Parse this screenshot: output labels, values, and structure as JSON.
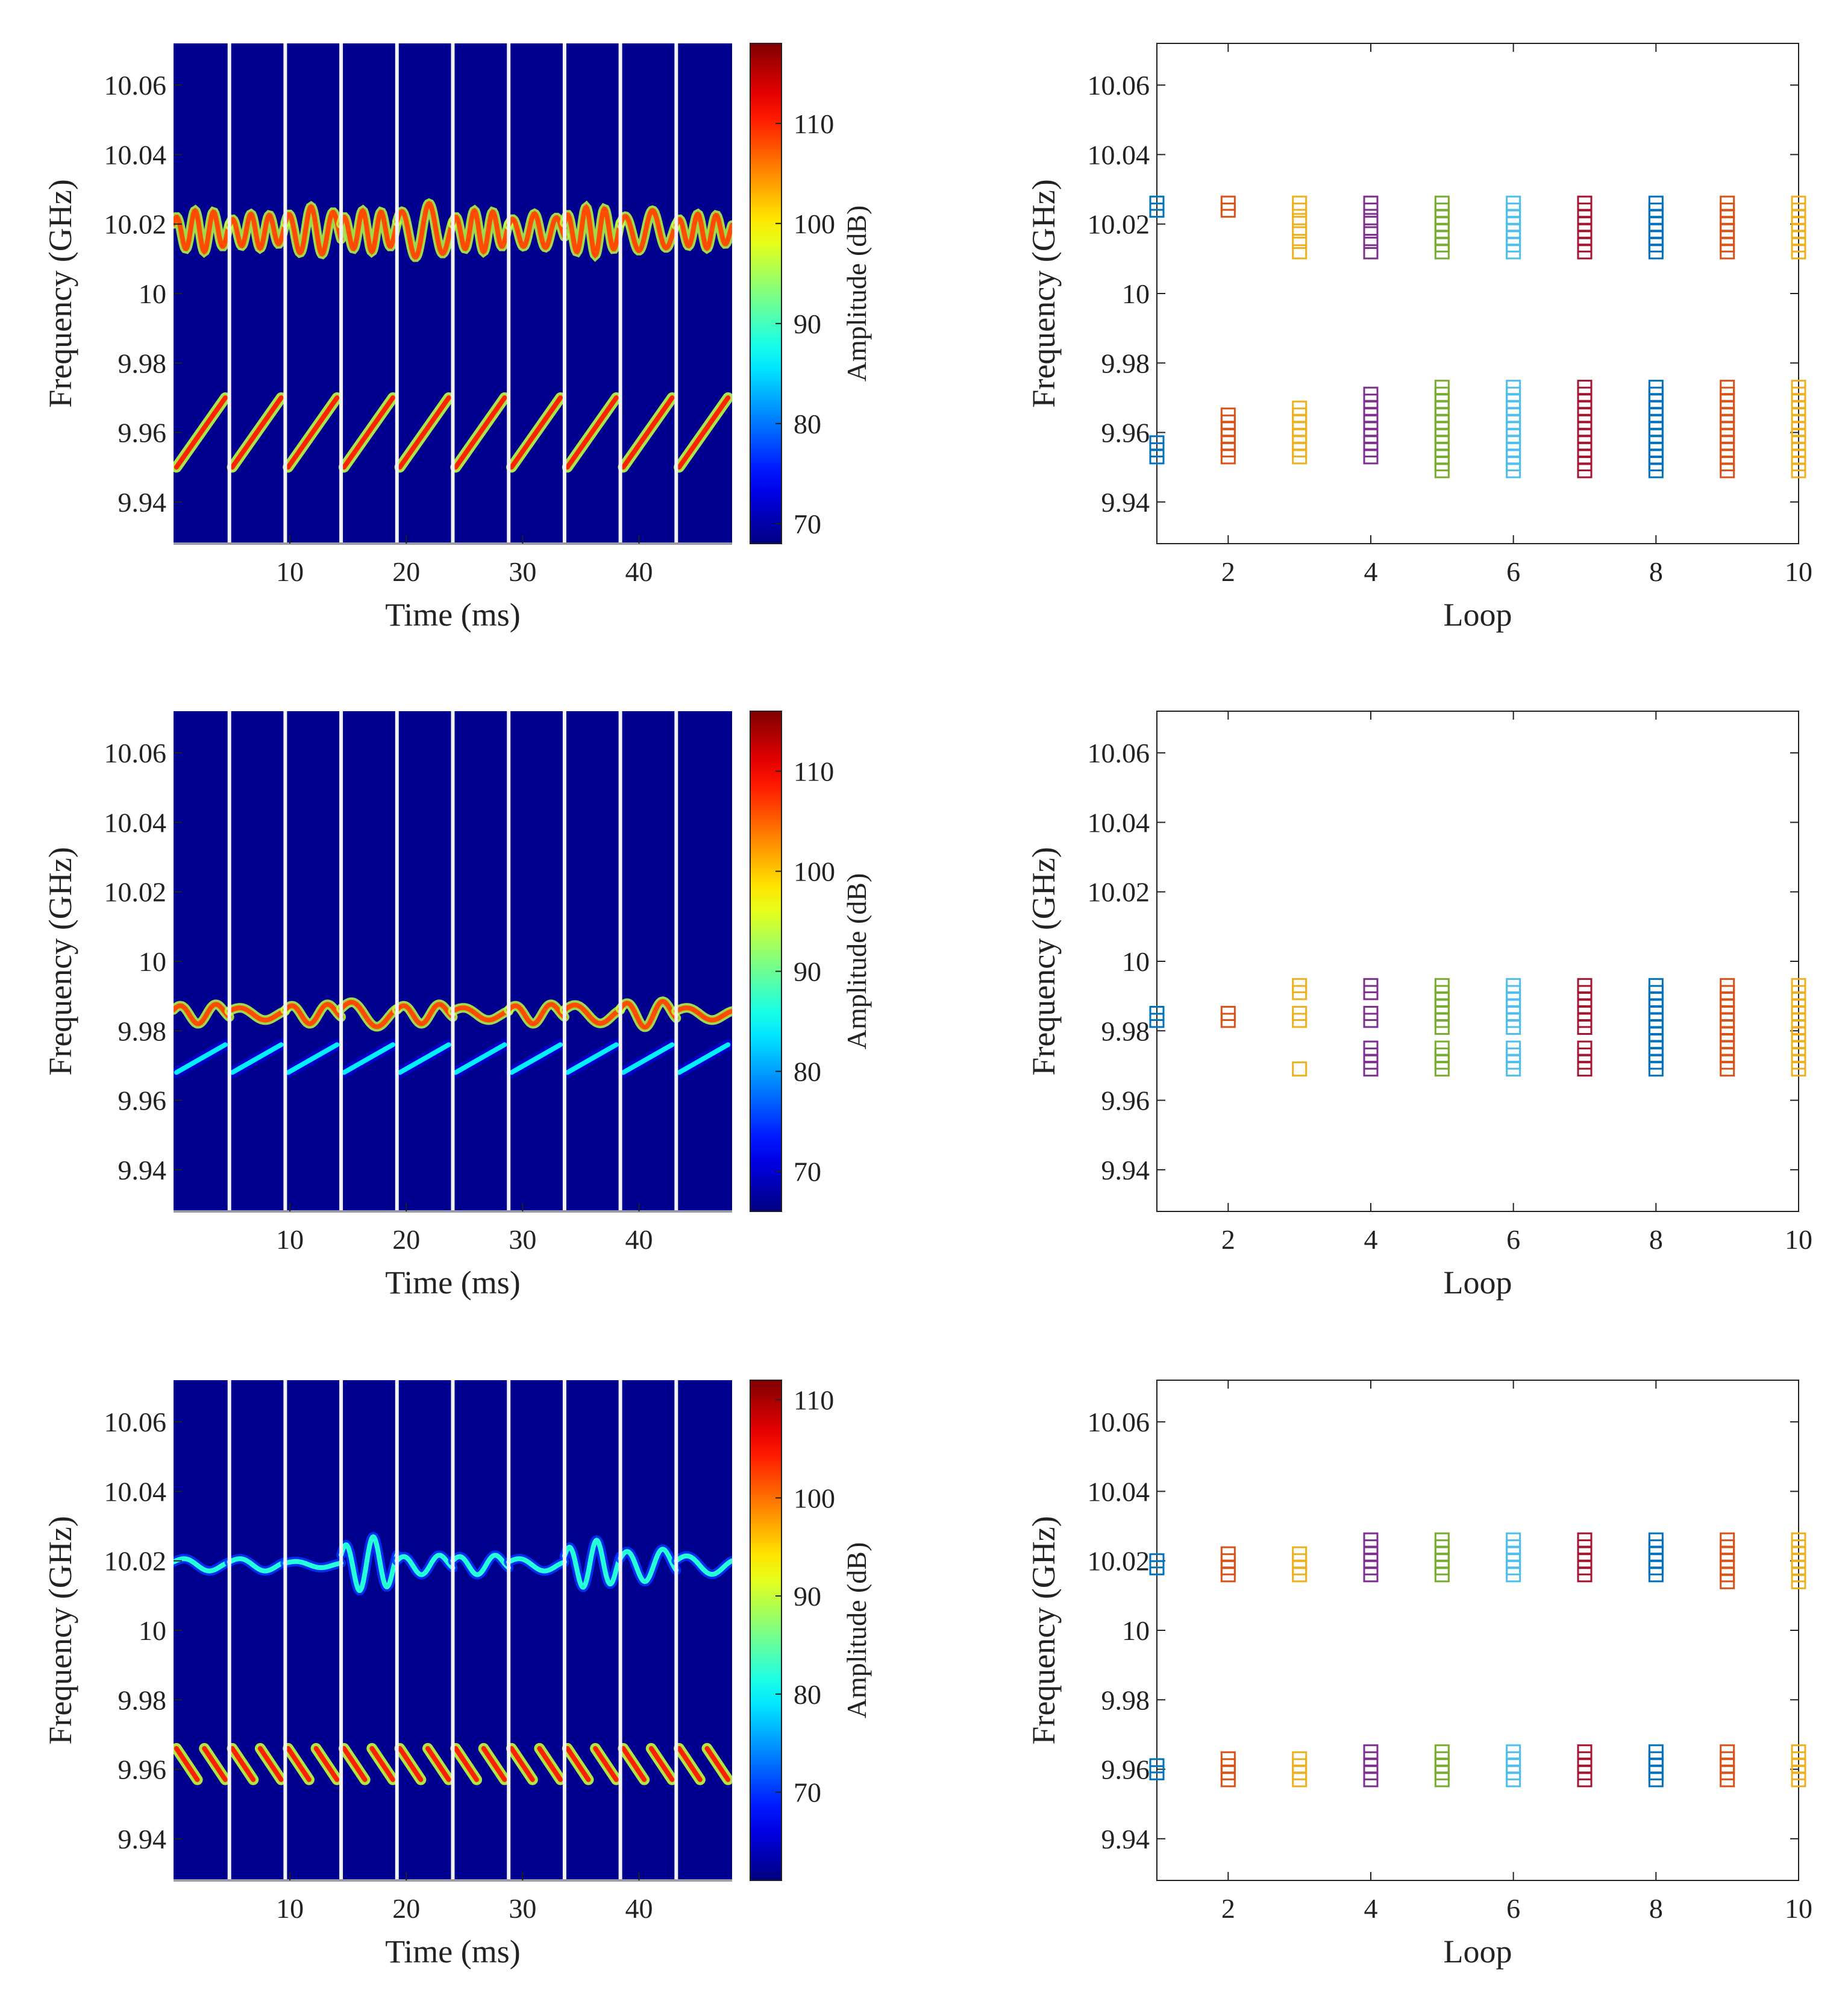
{
  "figure": {
    "colormap": "jet",
    "colors": {
      "background_plot": "#00008f",
      "separator": "#f2f2f2",
      "axis": "#222222"
    },
    "loop_colors": [
      "#0072bd",
      "#d95319",
      "#edb120",
      "#7e2f8e",
      "#77ac30",
      "#4dbeee",
      "#a2142f",
      "#0072bd",
      "#d95319",
      "#edb120"
    ]
  },
  "chart_data": [
    {
      "type": "heatmap",
      "id": "spectrogram-1",
      "xlabel": "Time (ms)",
      "ylabel": "Frequency (GHz)",
      "colorbar_label": "Amplitude (dB)",
      "xlim": [
        0,
        48
      ],
      "ylim": [
        9.928,
        10.072
      ],
      "xticks": [
        10,
        20,
        30,
        40
      ],
      "yticks": [
        9.94,
        9.96,
        9.98,
        10,
        10.02,
        10.04,
        10.06
      ],
      "ytick_labels": [
        "9.94",
        "9.96",
        "9.98",
        "10",
        "10.02",
        "10.04",
        "10.06"
      ],
      "cbar_range": [
        68,
        118
      ],
      "cbar_ticks": [
        70,
        80,
        90,
        100,
        110
      ],
      "separators_ms": [
        4.8,
        9.6,
        14.4,
        19.2,
        24,
        28.8,
        33.6,
        38.4,
        43.2
      ],
      "upper_band": {
        "center_ghz": 10.018,
        "swing_ghz": [
          0.006,
          0.005,
          0.007,
          0.006,
          0.008,
          0.006,
          0.005,
          0.007,
          0.006,
          0.005
        ],
        "cycles_per_loop": [
          3,
          3,
          2.5,
          3,
          2,
          3,
          2.5,
          3,
          2,
          3
        ],
        "level_db": 108
      },
      "lower_band": {
        "direction": "up",
        "start_ghz": 9.95,
        "end_ghz": 9.97,
        "level_db": 110
      }
    },
    {
      "type": "scatter",
      "id": "loops-1",
      "xlabel": "Loop",
      "ylabel": "Frequency (GHz)",
      "xlim": [
        1,
        10
      ],
      "ylim": [
        9.928,
        10.072
      ],
      "xticks": [
        2,
        4,
        6,
        8,
        10
      ],
      "yticks": [
        9.94,
        9.96,
        9.98,
        10,
        10.02,
        10.04,
        10.06
      ],
      "ytick_labels": [
        "9.94",
        "9.96",
        "9.98",
        "10",
        "10.02",
        "10.04",
        "10.06"
      ],
      "marker": "open-square",
      "points": [
        {
          "loop": 1,
          "freqs": [
            10.024,
            10.026,
            9.953,
            9.955,
            9.957
          ]
        },
        {
          "loop": 2,
          "freqs": [
            10.024,
            10.026,
            9.953,
            9.955,
            9.957,
            9.959,
            9.961,
            9.963,
            9.965
          ]
        },
        {
          "loop": 3,
          "freqs": [
            10.012,
            10.015,
            10.018,
            10.021,
            10.024,
            10.026,
            9.953,
            9.955,
            9.957,
            9.959,
            9.961,
            9.963,
            9.965,
            9.967
          ]
        },
        {
          "loop": 4,
          "freqs": [
            10.012,
            10.015,
            10.018,
            10.021,
            10.024,
            10.026,
            9.953,
            9.955,
            9.957,
            9.959,
            9.961,
            9.963,
            9.965,
            9.967,
            9.969,
            9.971
          ]
        },
        {
          "loop": 5,
          "freqs": [
            10.012,
            10.014,
            10.016,
            10.018,
            10.02,
            10.022,
            10.024,
            10.026,
            9.949,
            9.951,
            9.953,
            9.955,
            9.957,
            9.959,
            9.961,
            9.963,
            9.965,
            9.967,
            9.969,
            9.971,
            9.973
          ]
        },
        {
          "loop": 6,
          "freqs": [
            10.012,
            10.014,
            10.016,
            10.018,
            10.02,
            10.022,
            10.024,
            10.026,
            9.949,
            9.951,
            9.953,
            9.955,
            9.957,
            9.959,
            9.961,
            9.963,
            9.965,
            9.967,
            9.969,
            9.971,
            9.973
          ]
        },
        {
          "loop": 7,
          "freqs": [
            10.012,
            10.014,
            10.016,
            10.018,
            10.02,
            10.022,
            10.024,
            10.026,
            9.949,
            9.951,
            9.953,
            9.955,
            9.957,
            9.959,
            9.961,
            9.963,
            9.965,
            9.967,
            9.969,
            9.971,
            9.973
          ]
        },
        {
          "loop": 8,
          "freqs": [
            10.012,
            10.014,
            10.016,
            10.018,
            10.02,
            10.022,
            10.024,
            10.026,
            9.949,
            9.951,
            9.953,
            9.955,
            9.957,
            9.959,
            9.961,
            9.963,
            9.965,
            9.967,
            9.969,
            9.971,
            9.973
          ]
        },
        {
          "loop": 9,
          "freqs": [
            10.012,
            10.014,
            10.016,
            10.018,
            10.02,
            10.022,
            10.024,
            10.026,
            9.949,
            9.951,
            9.953,
            9.955,
            9.957,
            9.959,
            9.961,
            9.963,
            9.965,
            9.967,
            9.969,
            9.971,
            9.973
          ]
        },
        {
          "loop": 10,
          "freqs": [
            10.012,
            10.014,
            10.016,
            10.018,
            10.02,
            10.022,
            10.024,
            10.026,
            9.949,
            9.951,
            9.953,
            9.955,
            9.957,
            9.959,
            9.961,
            9.963,
            9.965,
            9.967,
            9.969,
            9.971,
            9.973
          ]
        }
      ]
    },
    {
      "type": "heatmap",
      "id": "spectrogram-2",
      "xlabel": "Time (ms)",
      "ylabel": "Frequency (GHz)",
      "colorbar_label": "Amplitude (dB)",
      "xlim": [
        0,
        48
      ],
      "ylim": [
        9.928,
        10.072
      ],
      "xticks": [
        10,
        20,
        30,
        40
      ],
      "yticks": [
        9.94,
        9.96,
        9.98,
        10,
        10.02,
        10.04,
        10.06
      ],
      "ytick_labels": [
        "9.94",
        "9.96",
        "9.98",
        "10",
        "10.02",
        "10.04",
        "10.06"
      ],
      "cbar_range": [
        66,
        116
      ],
      "cbar_ticks": [
        70,
        80,
        90,
        100,
        110
      ],
      "separators_ms": [
        4.8,
        9.6,
        14.4,
        19.2,
        24,
        28.8,
        33.6,
        38.4,
        43.2
      ],
      "upper_band": {
        "center_ghz": 9.985,
        "swing_ghz": [
          0.003,
          0.002,
          0.003,
          0.004,
          0.003,
          0.002,
          0.003,
          0.003,
          0.004,
          0.002
        ],
        "cycles_per_loop": [
          1.5,
          1,
          1.5,
          1,
          1.5,
          1,
          1.5,
          1,
          1.5,
          1
        ],
        "level_db": 106
      },
      "lower_band": {
        "direction": "up",
        "start_ghz": 9.968,
        "end_ghz": 9.976,
        "level_db": 84
      }
    },
    {
      "type": "scatter",
      "id": "loops-2",
      "xlabel": "Loop",
      "ylabel": "Frequency (GHz)",
      "xlim": [
        1,
        10
      ],
      "ylim": [
        9.928,
        10.072
      ],
      "xticks": [
        2,
        4,
        6,
        8,
        10
      ],
      "yticks": [
        9.94,
        9.96,
        9.98,
        10,
        10.02,
        10.04,
        10.06
      ],
      "ytick_labels": [
        "9.94",
        "9.96",
        "9.98",
        "10",
        "10.02",
        "10.04",
        "10.06"
      ],
      "marker": "open-square",
      "points": [
        {
          "loop": 1,
          "freqs": [
            9.983,
            9.985
          ]
        },
        {
          "loop": 2,
          "freqs": [
            9.983,
            9.985
          ]
        },
        {
          "loop": 3,
          "freqs": [
            9.969,
            9.983,
            9.985,
            9.991,
            9.993
          ]
        },
        {
          "loop": 4,
          "freqs": [
            9.969,
            9.971,
            9.973,
            9.975,
            9.983,
            9.985,
            9.991,
            9.993
          ]
        },
        {
          "loop": 5,
          "freqs": [
            9.969,
            9.971,
            9.973,
            9.975,
            9.981,
            9.983,
            9.985,
            9.987,
            9.989,
            9.991,
            9.993
          ]
        },
        {
          "loop": 6,
          "freqs": [
            9.969,
            9.971,
            9.973,
            9.975,
            9.981,
            9.983,
            9.985,
            9.987,
            9.989,
            9.991,
            9.993
          ]
        },
        {
          "loop": 7,
          "freqs": [
            9.969,
            9.971,
            9.973,
            9.975,
            9.981,
            9.983,
            9.985,
            9.987,
            9.989,
            9.991,
            9.993
          ]
        },
        {
          "loop": 8,
          "freqs": [
            9.969,
            9.971,
            9.973,
            9.975,
            9.977,
            9.979,
            9.981,
            9.983,
            9.985,
            9.987,
            9.989,
            9.991,
            9.993
          ]
        },
        {
          "loop": 9,
          "freqs": [
            9.969,
            9.971,
            9.973,
            9.975,
            9.977,
            9.979,
            9.981,
            9.983,
            9.985,
            9.987,
            9.989,
            9.991,
            9.993
          ]
        },
        {
          "loop": 10,
          "freqs": [
            9.969,
            9.971,
            9.973,
            9.975,
            9.977,
            9.979,
            9.981,
            9.983,
            9.985,
            9.987,
            9.989,
            9.991,
            9.993
          ]
        }
      ]
    },
    {
      "type": "heatmap",
      "id": "spectrogram-3",
      "xlabel": "Time (ms)",
      "ylabel": "Frequency (GHz)",
      "colorbar_label": "Amplitude (dB)",
      "xlim": [
        0,
        48
      ],
      "ylim": [
        9.928,
        10.072
      ],
      "xticks": [
        10,
        20,
        30,
        40
      ],
      "yticks": [
        9.94,
        9.96,
        9.98,
        10,
        10.02,
        10.04,
        10.06
      ],
      "ytick_labels": [
        "9.94",
        "9.96",
        "9.98",
        "10",
        "10.02",
        "10.04",
        "10.06"
      ],
      "cbar_range": [
        61,
        112
      ],
      "cbar_ticks": [
        70,
        80,
        90,
        100,
        110
      ],
      "separators_ms": [
        4.8,
        9.6,
        14.4,
        19.2,
        24,
        28.8,
        33.6,
        38.4,
        43.2
      ],
      "upper_band": {
        "center_ghz": 10.019,
        "swing_ghz": [
          0.002,
          0.002,
          0.001,
          0.008,
          0.003,
          0.003,
          0.002,
          0.007,
          0.005,
          0.003
        ],
        "cycles_per_loop": [
          1,
          1,
          1,
          2,
          1.5,
          1.5,
          1,
          2,
          1.5,
          1
        ],
        "level_db": 82
      },
      "lower_band": {
        "direction": "down",
        "start_ghz": 9.966,
        "end_ghz": 9.957,
        "subsweeps_per_loop": 2,
        "level_db": 104
      }
    },
    {
      "type": "scatter",
      "id": "loops-3",
      "xlabel": "Loop",
      "ylabel": "Frequency (GHz)",
      "xlim": [
        1,
        10
      ],
      "ylim": [
        9.928,
        10.072
      ],
      "xticks": [
        2,
        4,
        6,
        8,
        10
      ],
      "yticks": [
        9.94,
        9.96,
        9.98,
        10,
        10.02,
        10.04,
        10.06
      ],
      "ytick_labels": [
        "9.94",
        "9.96",
        "9.98",
        "10",
        "10.02",
        "10.04",
        "10.06"
      ],
      "marker": "open-square",
      "points": [
        {
          "loop": 1,
          "freqs": [
            10.018,
            10.02,
            9.959,
            9.961
          ]
        },
        {
          "loop": 2,
          "freqs": [
            10.016,
            10.018,
            10.02,
            10.022,
            9.957,
            9.959,
            9.961,
            9.963
          ]
        },
        {
          "loop": 3,
          "freqs": [
            10.016,
            10.018,
            10.02,
            10.022,
            9.957,
            9.959,
            9.961,
            9.963
          ]
        },
        {
          "loop": 4,
          "freqs": [
            10.016,
            10.018,
            10.02,
            10.022,
            10.024,
            10.026,
            9.957,
            9.959,
            9.961,
            9.963,
            9.965
          ]
        },
        {
          "loop": 5,
          "freqs": [
            10.016,
            10.018,
            10.02,
            10.022,
            10.024,
            10.026,
            9.957,
            9.959,
            9.961,
            9.963,
            9.965
          ]
        },
        {
          "loop": 6,
          "freqs": [
            10.016,
            10.018,
            10.02,
            10.022,
            10.024,
            10.026,
            9.957,
            9.959,
            9.961,
            9.963,
            9.965
          ]
        },
        {
          "loop": 7,
          "freqs": [
            10.016,
            10.018,
            10.02,
            10.022,
            10.024,
            10.026,
            9.957,
            9.959,
            9.961,
            9.963,
            9.965
          ]
        },
        {
          "loop": 8,
          "freqs": [
            10.016,
            10.018,
            10.02,
            10.022,
            10.024,
            10.026,
            9.957,
            9.959,
            9.961,
            9.963,
            9.965
          ]
        },
        {
          "loop": 9,
          "freqs": [
            10.014,
            10.016,
            10.018,
            10.02,
            10.022,
            10.024,
            10.026,
            9.957,
            9.959,
            9.961,
            9.963,
            9.965
          ]
        },
        {
          "loop": 10,
          "freqs": [
            10.014,
            10.016,
            10.018,
            10.02,
            10.022,
            10.024,
            10.026,
            9.957,
            9.959,
            9.961,
            9.963,
            9.965
          ]
        }
      ]
    }
  ]
}
